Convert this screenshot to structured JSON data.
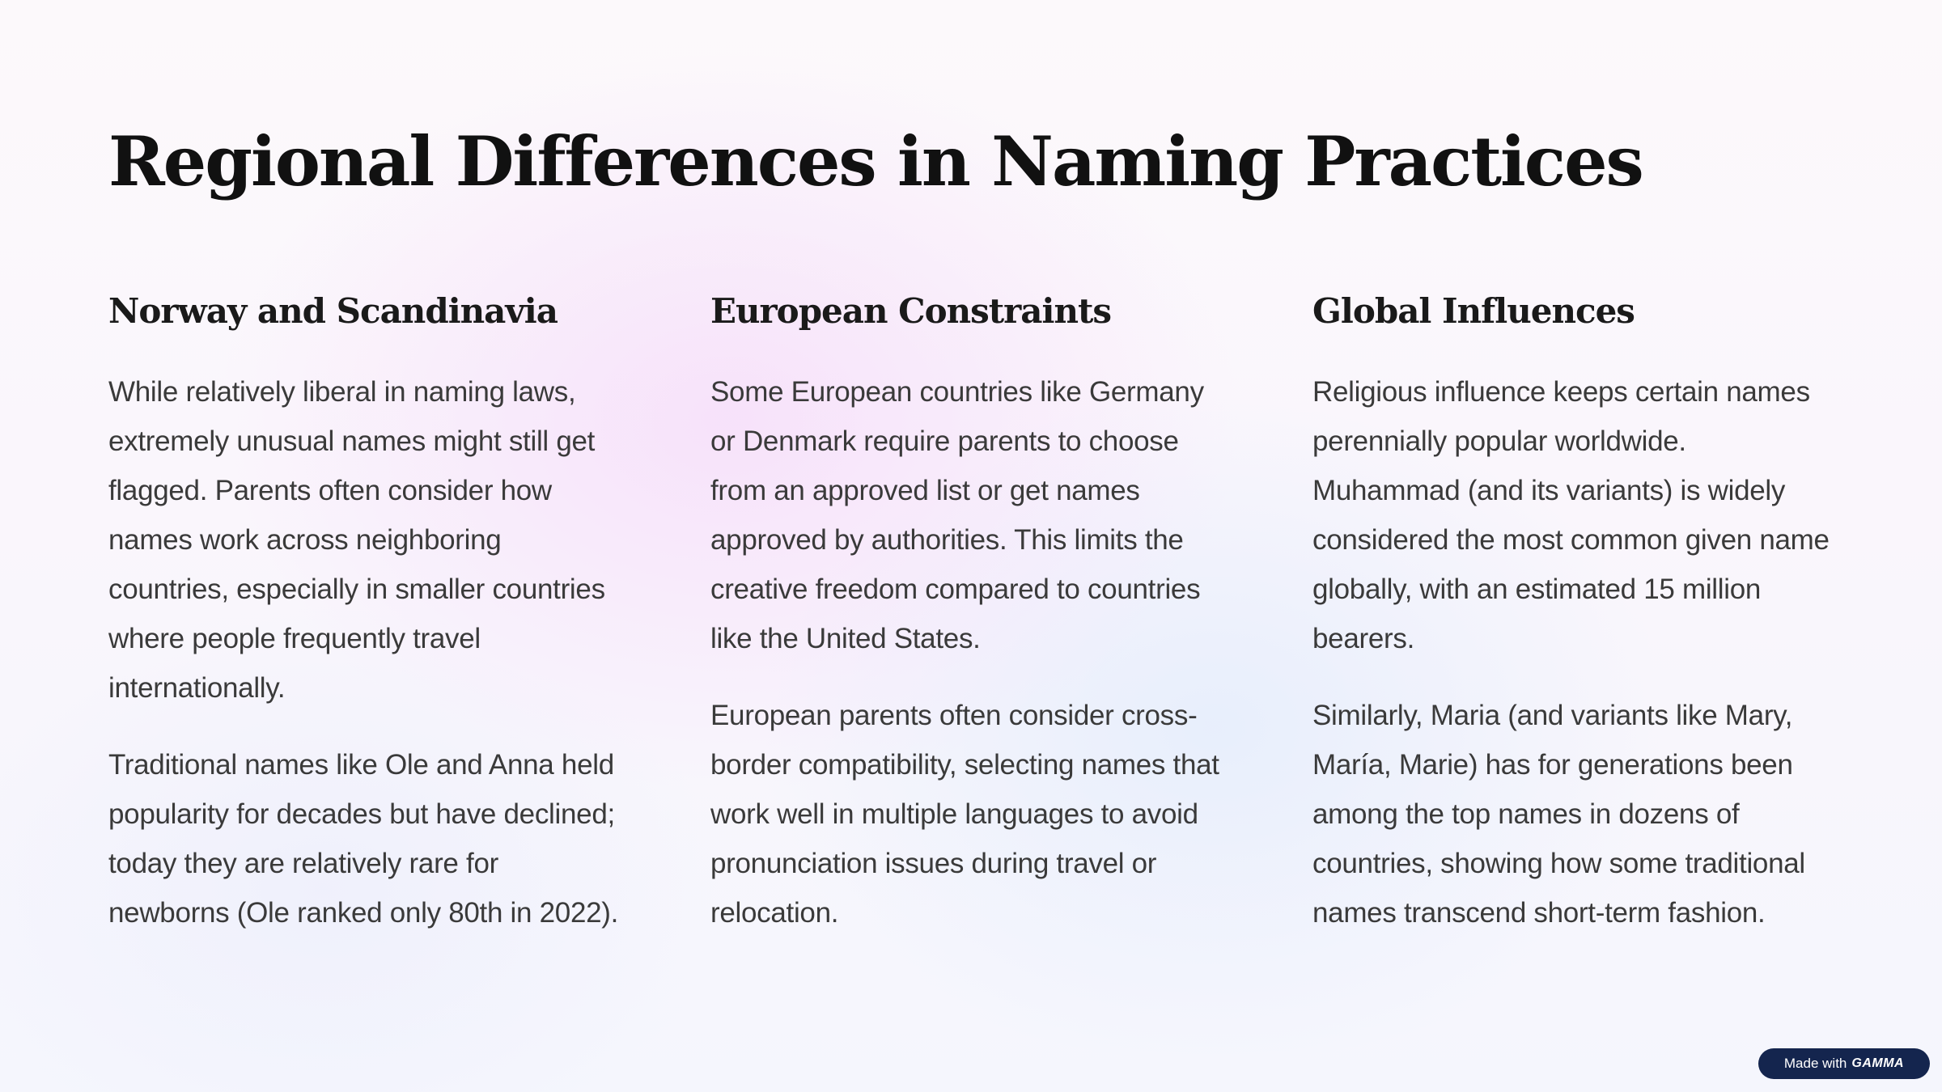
{
  "title": "Regional Differences in Naming Practices",
  "columns": [
    {
      "heading": "Norway and Scandinavia",
      "paragraphs": [
        "While relatively liberal in naming laws, extremely unusual names might still get flagged. Parents often consider how names work across neighboring countries, especially in smaller countries where people frequently travel internationally.",
        "Traditional names like Ole and Anna held popularity for decades but have declined; today they are relatively rare for newborns (Ole ranked only 80th in 2022)."
      ]
    },
    {
      "heading": "European Constraints",
      "paragraphs": [
        "Some European countries like Germany or Denmark require parents to choose from an approved list or get names approved by authorities. This limits the creative freedom compared to countries like the United States.",
        "European parents often consider cross-border compatibility, selecting names that work well in multiple languages to avoid pronunciation issues during travel or relocation."
      ]
    },
    {
      "heading": "Global Influences",
      "paragraphs": [
        "Religious influence keeps certain names perennially popular worldwide. Muhammad (and its variants) is widely considered the most common given name globally, with an estimated 15 million bearers.",
        "Similarly, Maria (and variants like Mary, María, Marie) has for generations been among the top names in dozens of countries, showing how some traditional names transcend short-term fashion."
      ]
    }
  ],
  "badge": {
    "prefix": "Made with",
    "brand": "GAMMA"
  }
}
